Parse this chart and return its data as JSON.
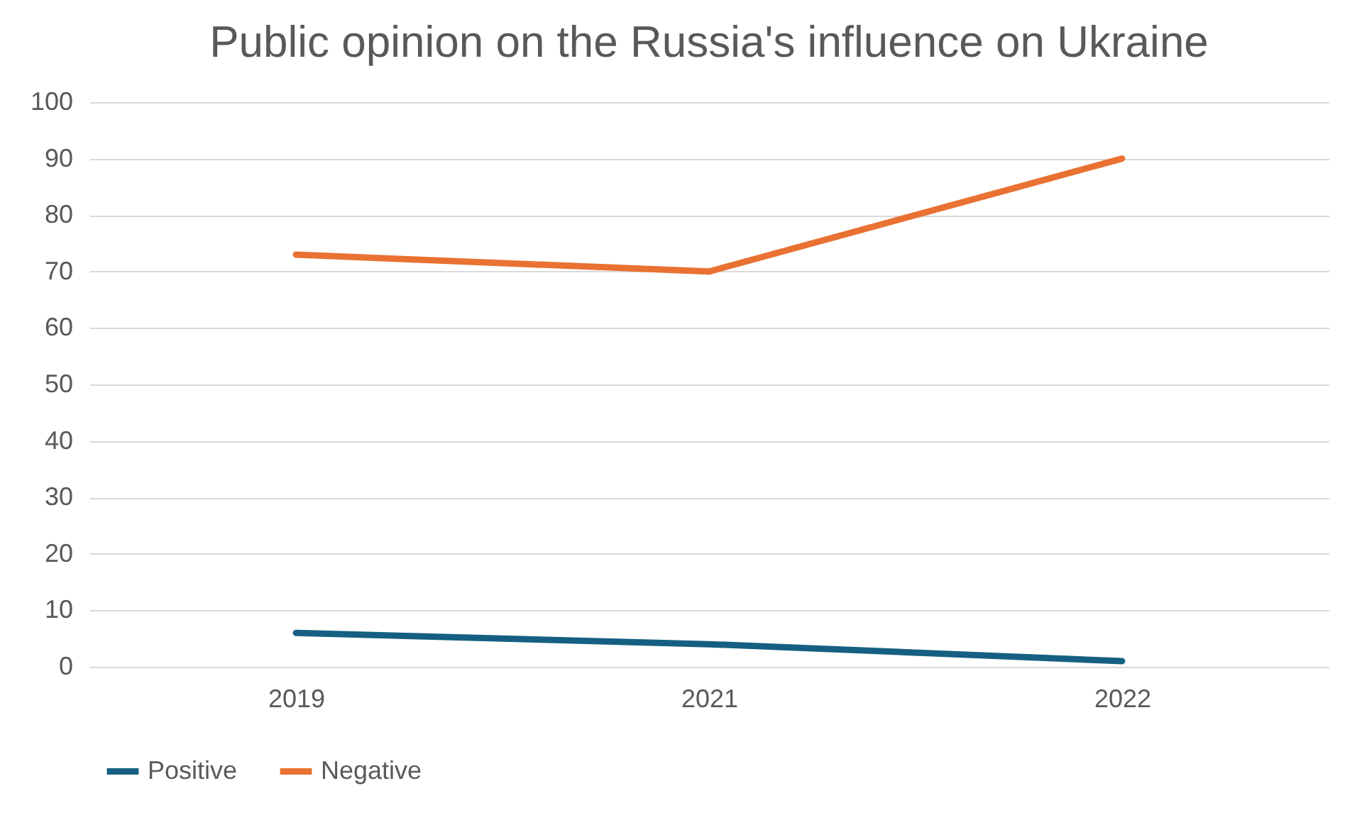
{
  "chart_data": {
    "type": "line",
    "title": "Public opinion on the Russia's influence on Ukraine",
    "categories": [
      "2019",
      "2021",
      "2022"
    ],
    "series": [
      {
        "name": "Positive",
        "color": "#156082",
        "values": [
          6,
          4,
          1
        ]
      },
      {
        "name": "Negative",
        "color": "#e97132",
        "values": [
          73,
          70,
          90
        ]
      }
    ],
    "ylim": [
      0,
      100
    ],
    "yticks": [
      0,
      10,
      20,
      30,
      40,
      50,
      60,
      70,
      80,
      90,
      100
    ],
    "grid": "y",
    "legend": "bottom",
    "marker": "none",
    "line_style": "solid"
  }
}
